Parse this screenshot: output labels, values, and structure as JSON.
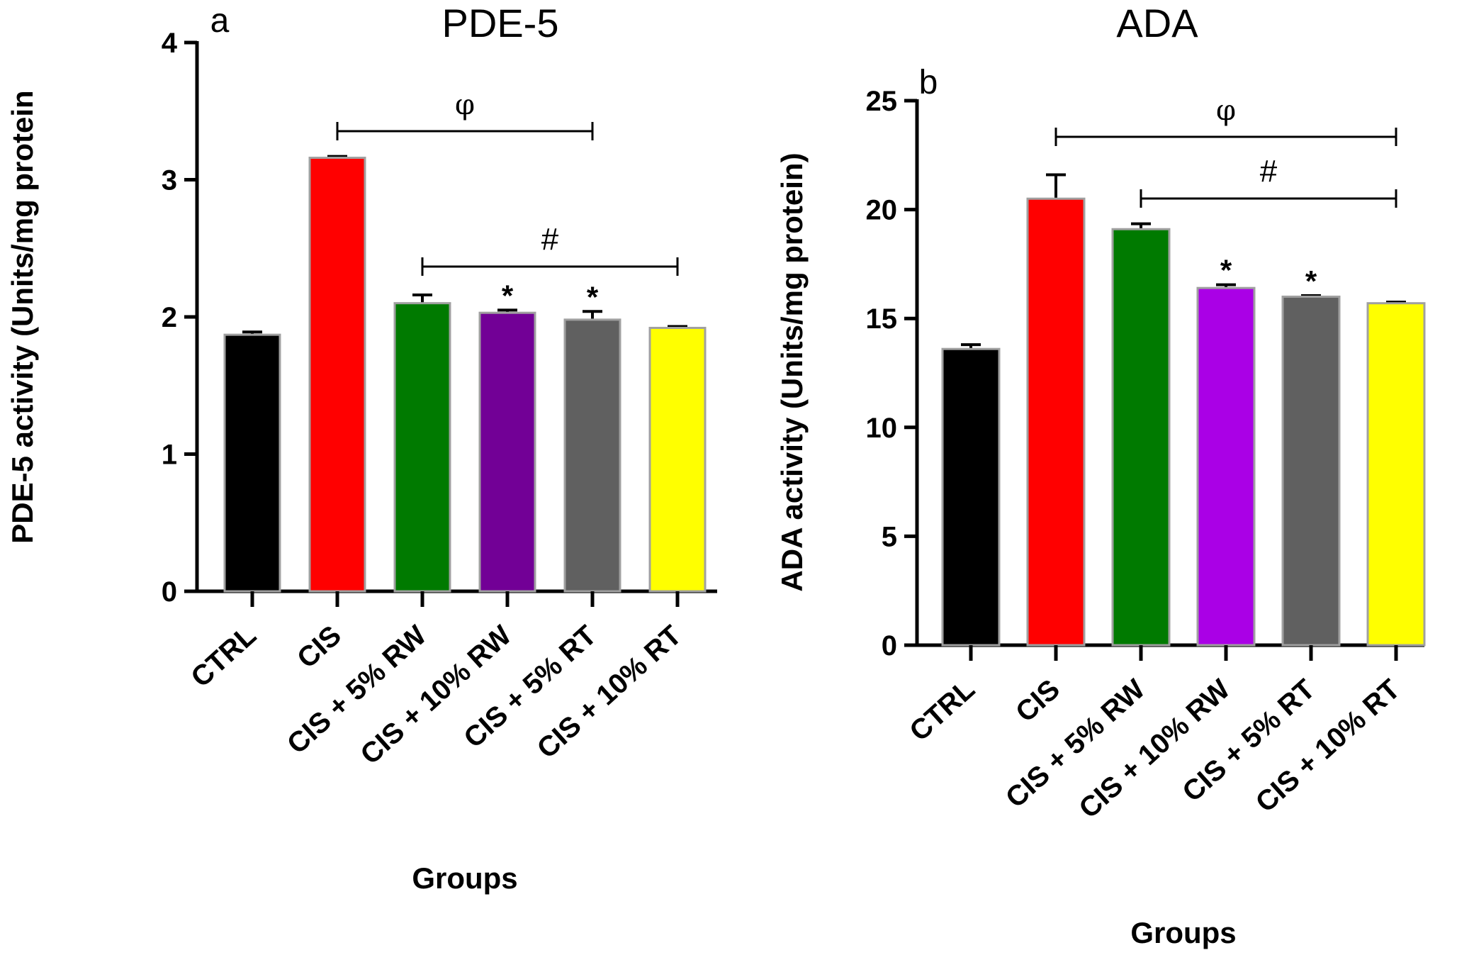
{
  "chart_data": [
    {
      "type": "bar",
      "panel_label": "a",
      "title": "PDE-5",
      "ylabel": "PDE-5 activity (Units/mg protein",
      "xlabel": "Groups",
      "ylim": [
        0,
        4
      ],
      "yticks": [
        "0",
        "1",
        "2",
        "3",
        "4"
      ],
      "categories": [
        "CTRL",
        "CIS",
        "CIS + 5% RW",
        "CIS + 10% RW",
        "CIS + 5% RT",
        "CIS + 10% RT"
      ],
      "values": [
        1.87,
        3.16,
        2.1,
        2.03,
        1.98,
        1.92
      ],
      "errors": [
        0.02,
        0.01,
        0.06,
        0.02,
        0.06,
        0.01
      ],
      "colors": [
        "#000000",
        "#ff0000",
        "#007a00",
        "#720096",
        "#606060",
        "#ffff00"
      ],
      "stars": [
        "",
        "",
        "",
        "*",
        "*",
        ""
      ],
      "brackets": [
        {
          "symbol": "φ",
          "from": 1,
          "to": 4
        },
        {
          "symbol": "#",
          "from": 2,
          "to": 5
        }
      ]
    },
    {
      "type": "bar",
      "panel_label": "b",
      "title": "ADA",
      "ylabel": "ADA activity (Units/mg protein)",
      "xlabel": "Groups",
      "ylim": [
        0,
        25
      ],
      "yticks": [
        "0",
        "5",
        "10",
        "15",
        "20",
        "25"
      ],
      "categories": [
        "CTRL",
        "CIS",
        "CIS + 5% RW",
        "CIS + 10% RW",
        "CIS + 5% RT",
        "CIS + 10% RT"
      ],
      "values": [
        13.6,
        20.5,
        19.1,
        16.4,
        16.0,
        15.7
      ],
      "errors": [
        0.2,
        1.1,
        0.25,
        0.15,
        0.05,
        0.05
      ],
      "colors": [
        "#000000",
        "#ff0000",
        "#007a00",
        "#aa00e6",
        "#606060",
        "#ffff00"
      ],
      "stars": [
        "",
        "",
        "",
        "*",
        "*",
        ""
      ],
      "brackets": [
        {
          "symbol": "φ",
          "from": 1,
          "to": 5
        },
        {
          "symbol": "#",
          "from": 2,
          "to": 5
        }
      ]
    }
  ]
}
